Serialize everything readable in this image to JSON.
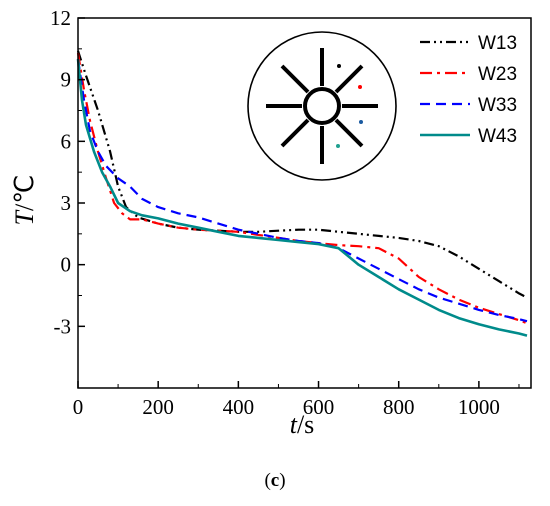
{
  "chart_data": {
    "type": "line",
    "title": "",
    "xlabel_var": "t",
    "xlabel_unit": "/s",
    "ylabel_var": "T",
    "ylabel_unit": "/℃",
    "xlim": [
      0,
      1130
    ],
    "ylim": [
      -6,
      12
    ],
    "xticks": [
      0,
      200,
      400,
      600,
      800,
      1000
    ],
    "yticks": [
      -3,
      0,
      3,
      6,
      9,
      12
    ],
    "legend_position": "top-right",
    "grid": false,
    "series": [
      {
        "name": "W13",
        "color": "#000000",
        "dash": "dashdotdot",
        "x": [
          0,
          20,
          50,
          80,
          100,
          120,
          150,
          200,
          250,
          300,
          350,
          400,
          450,
          500,
          550,
          600,
          650,
          700,
          750,
          800,
          850,
          900,
          950,
          1000,
          1050,
          1100,
          1120
        ],
        "y": [
          10.4,
          9.2,
          7.5,
          5.5,
          3.8,
          2.8,
          2.3,
          2.0,
          1.8,
          1.7,
          1.65,
          1.6,
          1.6,
          1.65,
          1.7,
          1.7,
          1.6,
          1.5,
          1.4,
          1.3,
          1.15,
          0.9,
          0.4,
          -0.2,
          -0.8,
          -1.4,
          -1.6
        ]
      },
      {
        "name": "W23",
        "color": "#ff0000",
        "dash": "dashdot",
        "x": [
          0,
          15,
          30,
          50,
          70,
          90,
          110,
          130,
          160,
          200,
          250,
          300,
          350,
          400,
          450,
          500,
          550,
          600,
          650,
          700,
          750,
          800,
          850,
          900,
          950,
          1000,
          1050,
          1100,
          1120
        ],
        "y": [
          10.3,
          8.5,
          7.0,
          5.5,
          4.2,
          3.0,
          2.5,
          2.2,
          2.2,
          2.0,
          1.8,
          1.7,
          1.65,
          1.6,
          1.45,
          1.3,
          1.15,
          1.05,
          0.95,
          0.9,
          0.8,
          0.3,
          -0.6,
          -1.2,
          -1.7,
          -2.1,
          -2.4,
          -2.7,
          -2.85
        ]
      },
      {
        "name": "W33",
        "color": "#0000ff",
        "dash": "dash",
        "x": [
          0,
          15,
          30,
          50,
          70,
          100,
          130,
          160,
          200,
          250,
          300,
          350,
          400,
          450,
          500,
          550,
          600,
          650,
          700,
          750,
          800,
          850,
          900,
          950,
          1000,
          1050,
          1100,
          1120
        ],
        "y": [
          10.0,
          8.0,
          6.5,
          5.5,
          4.8,
          4.2,
          3.8,
          3.2,
          2.8,
          2.5,
          2.3,
          2.0,
          1.7,
          1.5,
          1.3,
          1.15,
          1.05,
          0.8,
          0.3,
          -0.2,
          -0.7,
          -1.2,
          -1.6,
          -1.9,
          -2.2,
          -2.45,
          -2.65,
          -2.75
        ]
      },
      {
        "name": "W43",
        "color": "#008b8b",
        "dash": "solid",
        "x": [
          0,
          10,
          20,
          40,
          60,
          80,
          100,
          130,
          160,
          200,
          250,
          300,
          350,
          400,
          450,
          500,
          550,
          600,
          650,
          700,
          750,
          800,
          850,
          900,
          950,
          1000,
          1050,
          1100,
          1120
        ],
        "y": [
          10.0,
          8.0,
          6.8,
          5.5,
          4.5,
          3.8,
          3.0,
          2.6,
          2.4,
          2.25,
          2.0,
          1.8,
          1.6,
          1.4,
          1.3,
          1.2,
          1.1,
          1.0,
          0.8,
          0.0,
          -0.6,
          -1.2,
          -1.7,
          -2.2,
          -2.6,
          -2.9,
          -3.15,
          -3.35,
          -3.45
        ]
      }
    ]
  },
  "panel_label": "c"
}
